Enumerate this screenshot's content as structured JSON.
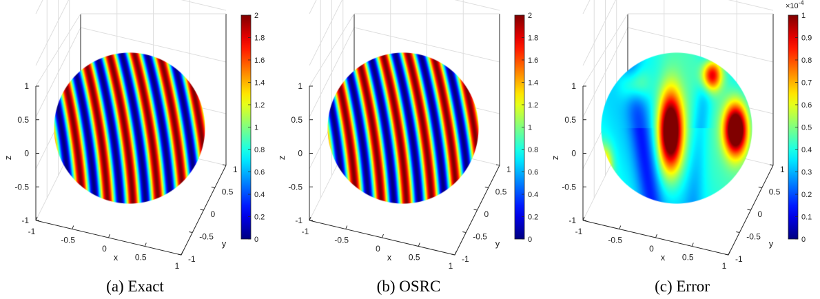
{
  "chart_data": [
    {
      "type": "surface",
      "caption": "(a) Exact",
      "xlabel": "x",
      "ylabel": "y",
      "zlabel": "z",
      "x_ticks": [
        "-1",
        "-0.5",
        "0",
        "0.5",
        "1"
      ],
      "y_ticks": [
        "-1",
        "-0.5",
        "0",
        "0.5",
        "1"
      ],
      "z_ticks": [
        "-1",
        "-0.5",
        "0",
        "0.5",
        "1"
      ],
      "colorbar": {
        "min": 0,
        "max": 2,
        "ticks": [
          "0",
          "0.2",
          "0.4",
          "0.6",
          "0.8",
          "1",
          "1.2",
          "1.4",
          "1.6",
          "1.8",
          "2"
        ],
        "exponent": ""
      },
      "colormap": "jet",
      "pattern": "stripes",
      "wavenumber": 6
    },
    {
      "type": "surface",
      "caption": "(b) OSRC",
      "xlabel": "x",
      "ylabel": "y",
      "zlabel": "z",
      "x_ticks": [
        "-1",
        "-0.5",
        "0",
        "0.5",
        "1"
      ],
      "y_ticks": [
        "-1",
        "-0.5",
        "0",
        "0.5",
        "1"
      ],
      "z_ticks": [
        "-1",
        "-0.5",
        "0",
        "0.5",
        "1"
      ],
      "colorbar": {
        "min": 0,
        "max": 2,
        "ticks": [
          "0",
          "0.2",
          "0.4",
          "0.6",
          "0.8",
          "1",
          "1.2",
          "1.4",
          "1.6",
          "1.8",
          "2"
        ],
        "exponent": ""
      },
      "colormap": "jet",
      "pattern": "stripes",
      "wavenumber": 6
    },
    {
      "type": "surface",
      "caption": "(c) Error",
      "xlabel": "x",
      "ylabel": "y",
      "zlabel": "z",
      "x_ticks": [
        "-1",
        "-0.5",
        "0",
        "0.5",
        "1"
      ],
      "y_ticks": [
        "-1",
        "-0.5",
        "0",
        "0.5",
        "1"
      ],
      "z_ticks": [
        "-1",
        "-0.5",
        "0",
        "0.5",
        "1"
      ],
      "colorbar": {
        "min": 0,
        "max": 1,
        "ticks": [
          "0",
          "0.1",
          "0.2",
          "0.3",
          "0.4",
          "0.5",
          "0.6",
          "0.7",
          "0.8",
          "0.9",
          "1"
        ],
        "exponent": "×10-4"
      },
      "colormap": "jet",
      "pattern": "blobs"
    }
  ]
}
